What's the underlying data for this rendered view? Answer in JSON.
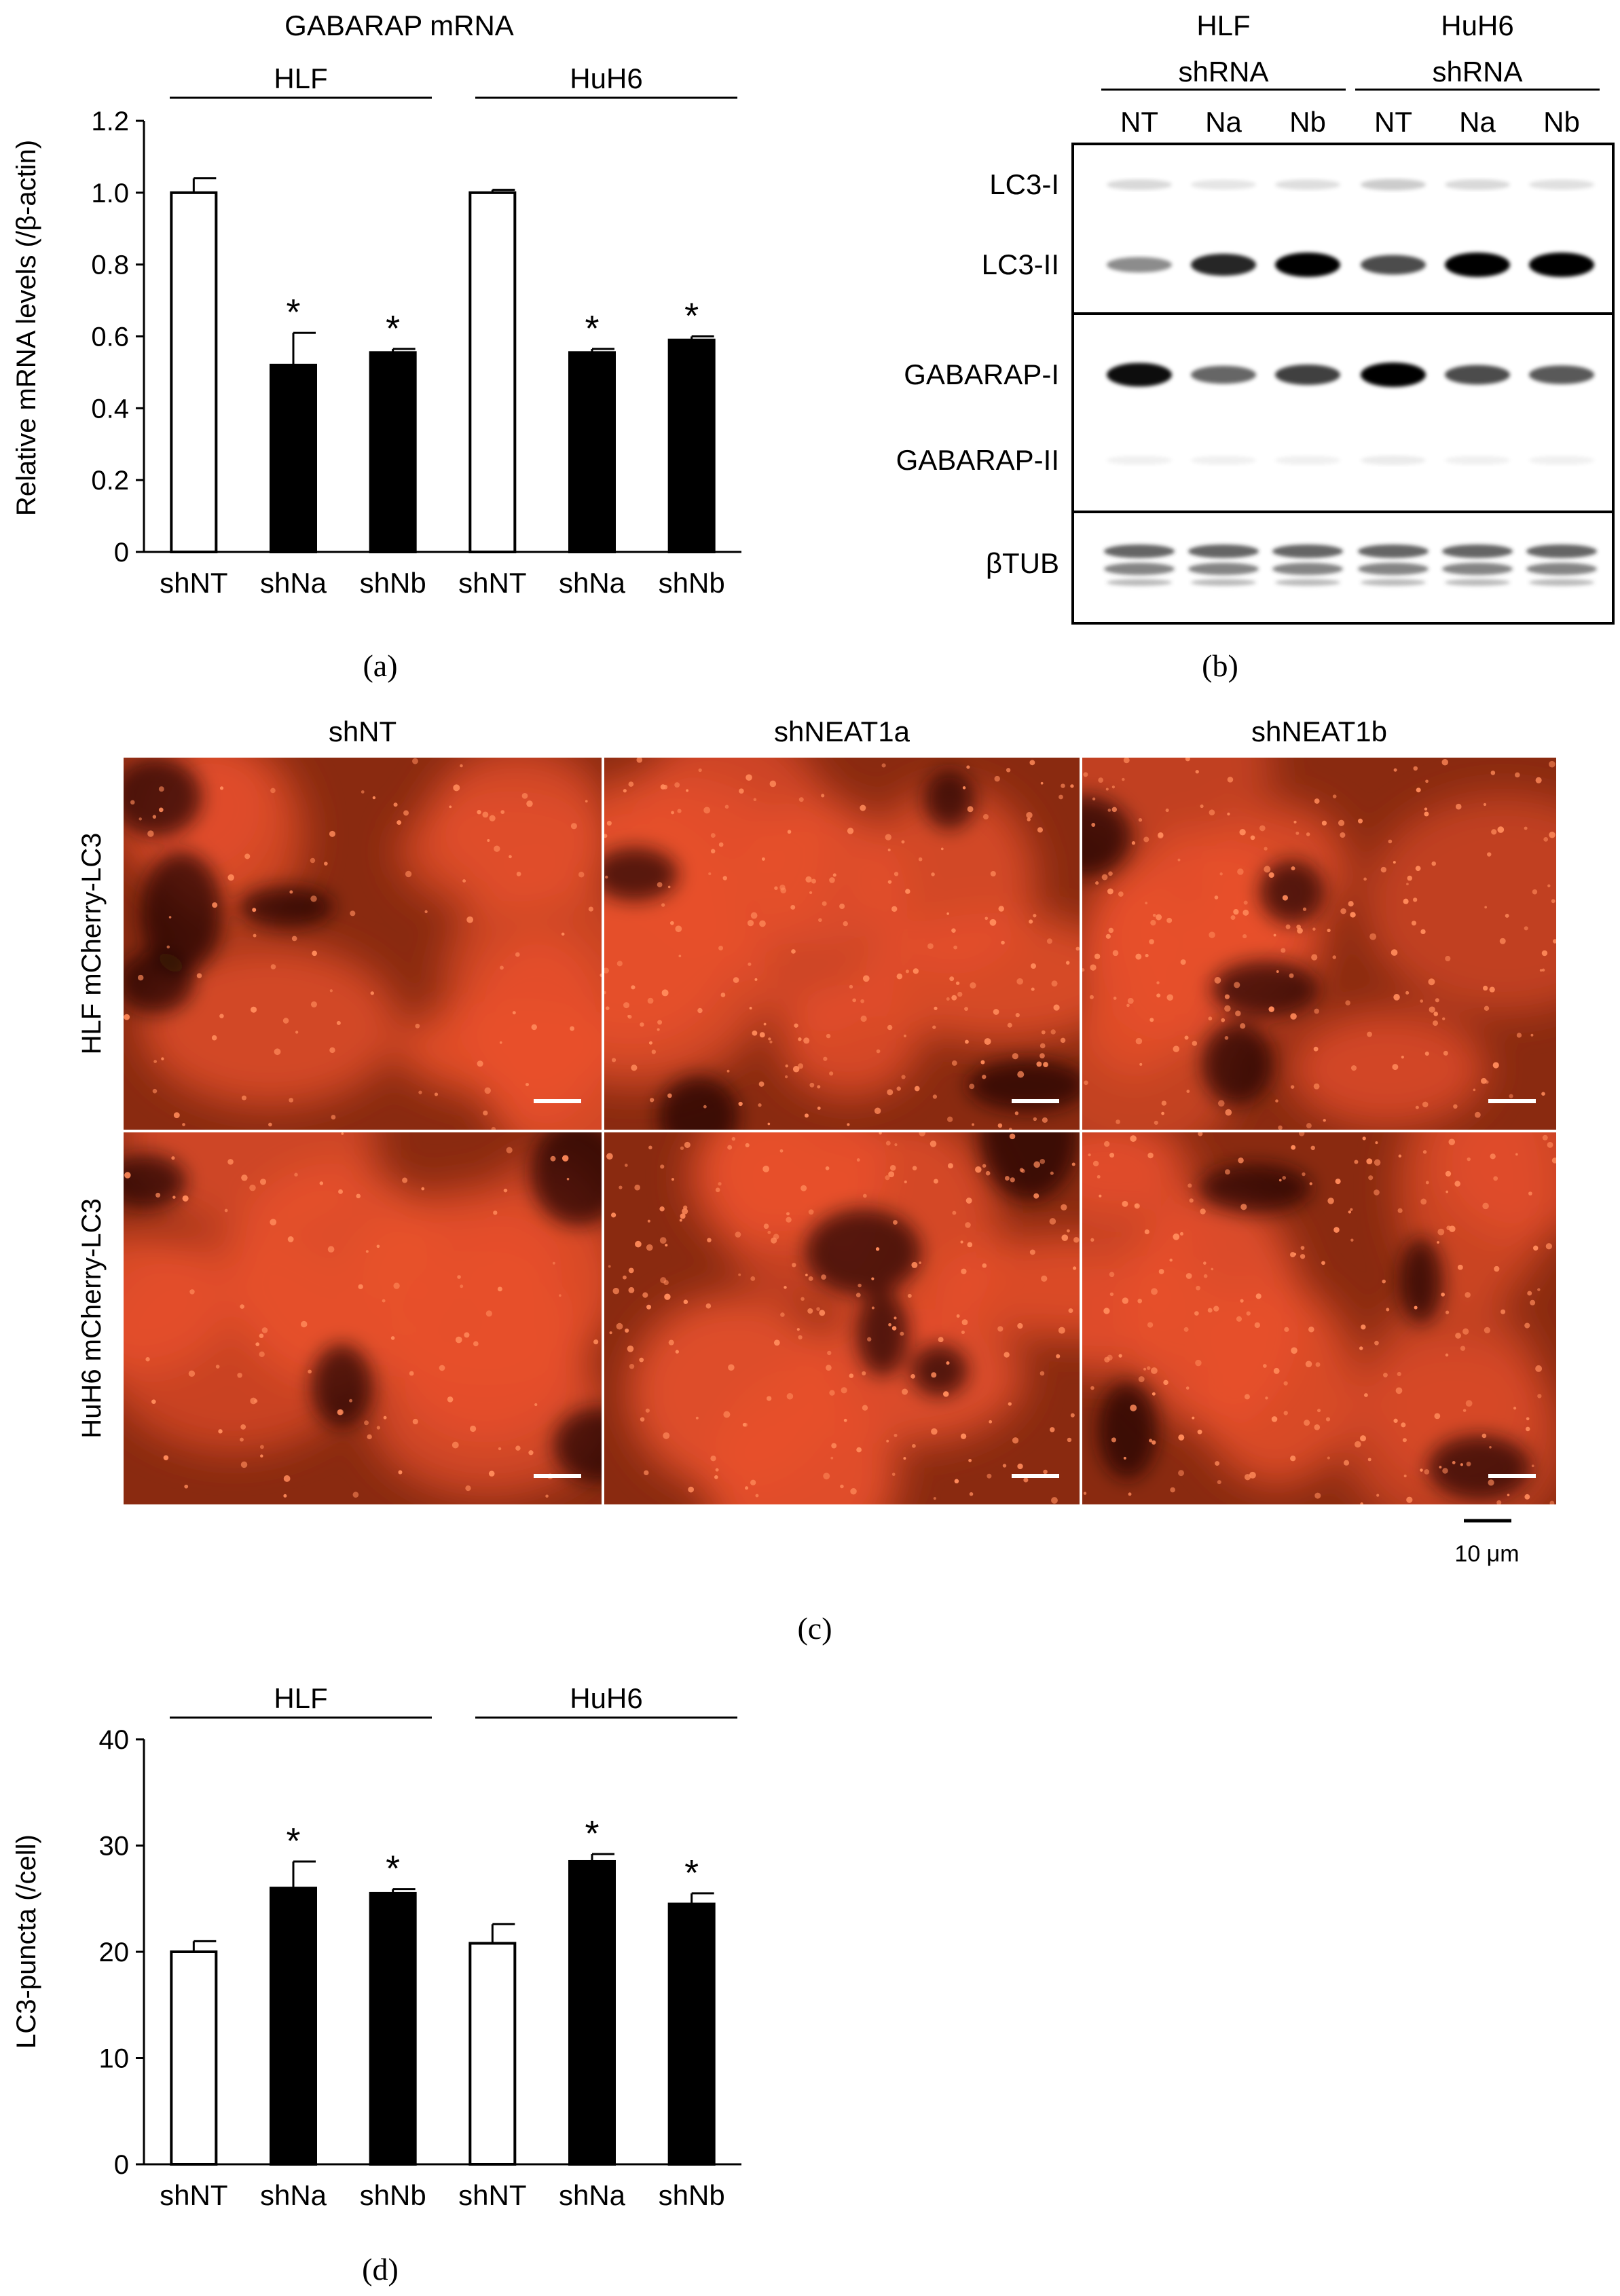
{
  "panel_labels": {
    "a": "(a)",
    "b": "(b)",
    "c": "(c)",
    "d": "(d)"
  },
  "chart_data": [
    {
      "panel": "a",
      "type": "bar",
      "title": "GABARAP mRNA",
      "ylabel": "Relative mRNA levels (/β-actin)",
      "xlabel": "",
      "ylim": [
        0,
        1.2
      ],
      "yticks": [
        "0",
        "0.2",
        "0.4",
        "0.6",
        "0.8",
        "1.0",
        "1.2"
      ],
      "groups": [
        "HLF",
        "HuH6"
      ],
      "categories": [
        "shNT",
        "shNa",
        "shNb",
        "shNT",
        "shNa",
        "shNb"
      ],
      "values": [
        1.0,
        0.52,
        0.555,
        1.0,
        0.555,
        0.59
      ],
      "errors": [
        0.04,
        0.09,
        0.01,
        0.008,
        0.01,
        0.01
      ],
      "fill": [
        "white",
        "black",
        "black",
        "white",
        "black",
        "black"
      ],
      "significance": [
        "",
        "*",
        "*",
        "",
        "*",
        "*"
      ],
      "grid": false
    },
    {
      "panel": "d",
      "type": "bar",
      "title": "",
      "ylabel": "LC3-puncta (/cell)",
      "xlabel": "",
      "ylim": [
        0,
        40
      ],
      "yticks": [
        "0",
        "10",
        "20",
        "30",
        "40"
      ],
      "groups": [
        "HLF",
        "HuH6"
      ],
      "categories": [
        "shNT",
        "shNa",
        "shNb",
        "shNT",
        "shNa",
        "shNb"
      ],
      "values": [
        20,
        26,
        25.5,
        20.8,
        28.5,
        24.5
      ],
      "errors": [
        1.0,
        2.5,
        0.4,
        1.8,
        0.7,
        1.0
      ],
      "fill": [
        "white",
        "black",
        "black",
        "white",
        "black",
        "black"
      ],
      "significance": [
        "",
        "*",
        "*",
        "",
        "*",
        "*"
      ],
      "grid": false
    }
  ],
  "western_blot": {
    "groups": [
      {
        "name": "HLF",
        "sub": "shRNA",
        "lanes": [
          "NT",
          "Na",
          "Nb"
        ]
      },
      {
        "name": "HuH6",
        "sub": "shRNA",
        "lanes": [
          "NT",
          "Na",
          "Nb"
        ]
      }
    ],
    "rows": [
      {
        "label": "LC3-I",
        "intensity": [
          0.15,
          0.1,
          0.13,
          0.2,
          0.15,
          0.12
        ]
      },
      {
        "label": "LC3-II",
        "intensity": [
          0.45,
          0.85,
          1.0,
          0.7,
          1.0,
          1.0
        ]
      },
      {
        "label": "GABARAP-I",
        "intensity": [
          0.95,
          0.6,
          0.75,
          1.0,
          0.7,
          0.65
        ]
      },
      {
        "label": "GABARAP-II",
        "intensity": [
          0.05,
          0.04,
          0.06,
          0.08,
          0.05,
          0.05
        ]
      },
      {
        "label": "βTUB",
        "intensity": [
          0.6,
          0.6,
          0.6,
          0.6,
          0.6,
          0.6
        ]
      }
    ]
  },
  "microscopy": {
    "columns": [
      "shNT",
      "shNEAT1a",
      "shNEAT1b"
    ],
    "rows": [
      "HLF mCherry-LC3",
      "HuH6 mCherry-LC3"
    ],
    "scale_bar_label": "10 μm",
    "colors": {
      "background": "#8a2a10",
      "cell": "#e8502c",
      "puncta": "#ff8a5a",
      "dark": "#200802"
    }
  }
}
